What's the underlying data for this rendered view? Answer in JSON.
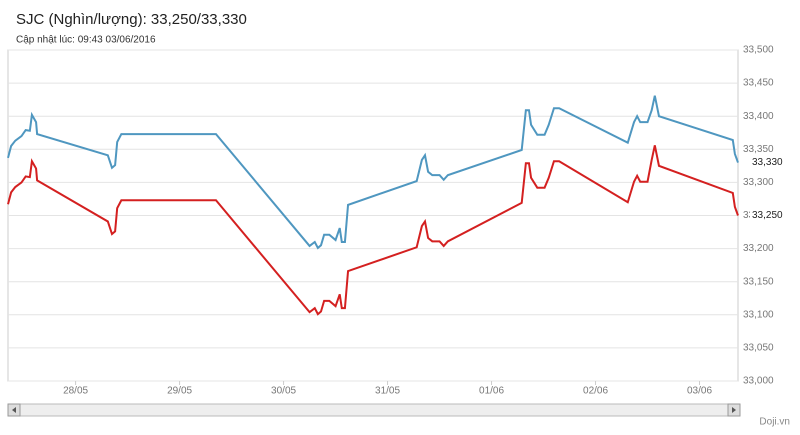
{
  "chart_data": {
    "type": "line",
    "title": "SJC (Nghìn/lượng): 33,250/33,330",
    "subtitle": "Cập nhật lúc: 09:43 03/06/2016",
    "source": "Doji.vn",
    "x": [
      -0.65,
      -0.62,
      -0.58,
      -0.52,
      -0.48,
      -0.44,
      -0.42,
      -0.38,
      -0.37,
      0.31,
      0.35,
      0.38,
      0.4,
      0.44,
      1.35,
      2.25,
      2.3,
      2.33,
      2.36,
      2.39,
      2.44,
      2.5,
      2.54,
      2.56,
      2.59,
      2.62,
      3.28,
      3.33,
      3.36,
      3.39,
      3.43,
      3.5,
      3.54,
      3.58,
      4.29,
      4.33,
      4.36,
      4.38,
      4.44,
      4.51,
      4.55,
      4.6,
      4.65,
      5.31,
      5.37,
      5.4,
      5.43,
      5.5,
      5.54,
      5.57,
      5.61,
      6.32,
      6.34,
      6.37
    ],
    "series": [
      {
        "color": "#4f97c0",
        "values": [
          33337,
          33355,
          33363,
          33370,
          33379,
          33378,
          33402,
          33391,
          33373,
          33341,
          33322,
          33326,
          33361,
          33373,
          33373,
          33204,
          33210,
          33201,
          33205,
          33221,
          33221,
          33213,
          33231,
          33210,
          33210,
          33266,
          33302,
          33334,
          33341,
          33316,
          33311,
          33311,
          33304,
          33311,
          33349,
          33409,
          33409,
          33387,
          33372,
          33372,
          33387,
          33412,
          33412,
          33360,
          33391,
          33400,
          33391,
          33391,
          33409,
          33431,
          33400,
          33364,
          33343,
          33330
        ],
        "value_labels": [
          null,
          null,
          null,
          null,
          null,
          null,
          null,
          null,
          null,
          null,
          null,
          null,
          null,
          null,
          null,
          null,
          null,
          null,
          null,
          null,
          null,
          null,
          null,
          null,
          null,
          null,
          null,
          null,
          null,
          null,
          null,
          null,
          null,
          null,
          null,
          null,
          null,
          null,
          null,
          null,
          null,
          null,
          null,
          null,
          null,
          null,
          null,
          null,
          null,
          null,
          null,
          null,
          null,
          "33,330"
        ]
      },
      {
        "color": "#d42020",
        "values": [
          33267,
          33285,
          33293,
          33300,
          33309,
          33308,
          33332,
          33321,
          33303,
          33241,
          33222,
          33226,
          33261,
          33273,
          33273,
          33104,
          33110,
          33101,
          33105,
          33121,
          33121,
          33113,
          33131,
          33110,
          33110,
          33166,
          33202,
          33234,
          33241,
          33216,
          33211,
          33211,
          33204,
          33211,
          33269,
          33329,
          33329,
          33307,
          33292,
          33292,
          33307,
          33332,
          33332,
          33270,
          33301,
          33310,
          33301,
          33301,
          33334,
          33356,
          33325,
          33284,
          33263,
          33250
        ],
        "value_labels": [
          null,
          null,
          null,
          null,
          null,
          null,
          null,
          null,
          null,
          null,
          null,
          null,
          null,
          null,
          null,
          null,
          null,
          null,
          null,
          null,
          null,
          null,
          null,
          null,
          null,
          null,
          null,
          null,
          null,
          null,
          null,
          null,
          null,
          null,
          null,
          null,
          null,
          null,
          null,
          null,
          null,
          null,
          null,
          null,
          null,
          null,
          null,
          null,
          null,
          null,
          null,
          null,
          null,
          "33,250"
        ]
      }
    ],
    "xlim": [
      -0.65,
      6.37
    ],
    "xticks": [
      {
        "value": 0,
        "label": "28/05"
      },
      {
        "value": 1,
        "label": "29/05"
      },
      {
        "value": 2,
        "label": "30/05"
      },
      {
        "value": 3,
        "label": "31/05"
      },
      {
        "value": 4,
        "label": "01/06"
      },
      {
        "value": 5,
        "label": "02/06"
      },
      {
        "value": 6,
        "label": "03/06"
      }
    ],
    "ylim": [
      33000,
      33500
    ],
    "yticks": [
      {
        "value": 33000,
        "label": "33,000"
      },
      {
        "value": 33050,
        "label": "33,050"
      },
      {
        "value": 33100,
        "label": "33,100"
      },
      {
        "value": 33150,
        "label": "33,150"
      },
      {
        "value": 33200,
        "label": "33,200"
      },
      {
        "value": 33250,
        "label": "33,250"
      },
      {
        "value": 33300,
        "label": "33,300"
      },
      {
        "value": 33350,
        "label": "33,350"
      },
      {
        "value": 33400,
        "label": "33,400"
      },
      {
        "value": 33450,
        "label": "33,450"
      },
      {
        "value": 33500,
        "label": "33,500"
      }
    ],
    "grid": true
  }
}
